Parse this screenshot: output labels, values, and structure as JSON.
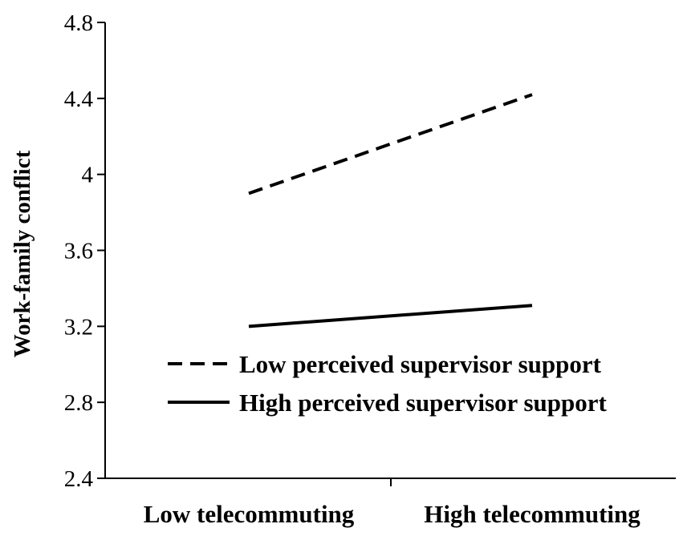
{
  "chart_data": {
    "type": "line",
    "categories": [
      "Low telecommuting",
      "High telecommuting"
    ],
    "ylabel": "Work-family conflict",
    "xlabel": "",
    "ylim": [
      2.4,
      4.8
    ],
    "yticks": [
      "4.8",
      "4.4",
      "4",
      "3.6",
      "3.2",
      "2.8",
      "2.4"
    ],
    "series": [
      {
        "name": "Low perceived supervisor support",
        "values": [
          3.9,
          4.42
        ],
        "style": "dashed"
      },
      {
        "name": "High perceived supervisor support",
        "values": [
          3.2,
          3.31
        ],
        "style": "solid"
      }
    ],
    "legend_position": "bottom-right",
    "grid": false,
    "color": "#000000"
  }
}
